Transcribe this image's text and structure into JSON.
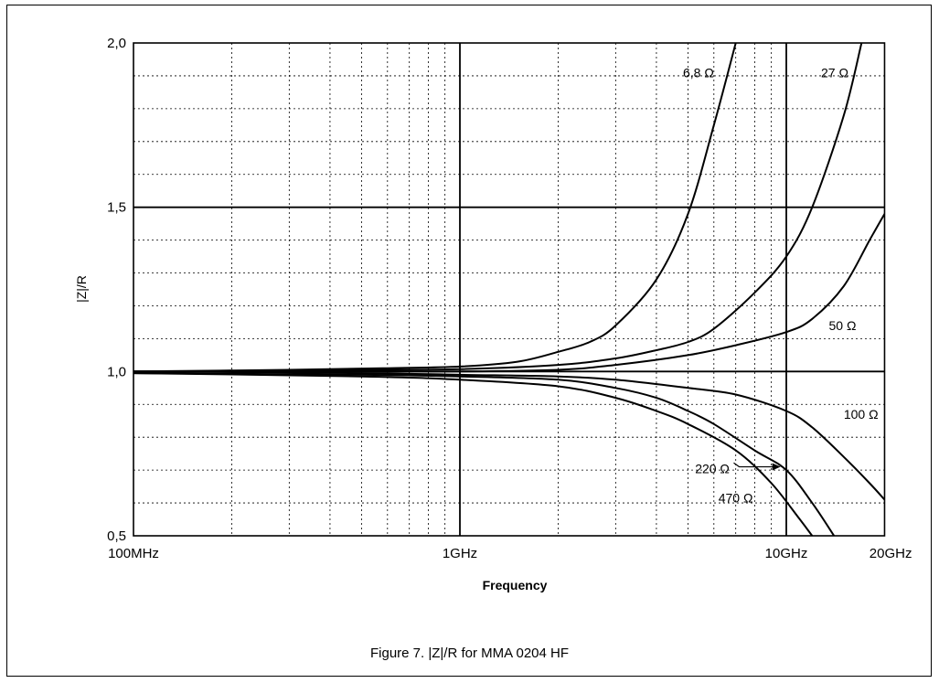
{
  "caption": "Figure 7. |Z|/R for MMA 0204 HF",
  "chart_data": {
    "type": "line",
    "title": "",
    "xlabel": "Frequency",
    "ylabel": "|Z|/R",
    "x_scale": "log",
    "x_unit": "GHz",
    "xlim": [
      0.1,
      20
    ],
    "ylim": [
      0.5,
      2.0
    ],
    "grid": true,
    "x_ticks": [
      {
        "value": 0.1,
        "label": "100MHz"
      },
      {
        "value": 1,
        "label": "1GHz"
      },
      {
        "value": 10,
        "label": "10GHz"
      },
      {
        "value": 20,
        "label": "20GHz"
      }
    ],
    "y_ticks": [
      {
        "value": 0.5,
        "label": "0,5"
      },
      {
        "value": 1.0,
        "label": "1,0"
      },
      {
        "value": 1.5,
        "label": "1,5"
      },
      {
        "value": 2.0,
        "label": "2,0"
      }
    ],
    "series": [
      {
        "name": "6,8 Ω",
        "x": [
          0.1,
          0.3,
          0.6,
          1,
          1.5,
          2,
          2.5,
          3,
          4,
          5,
          6,
          7
        ],
        "y": [
          1.0,
          1.005,
          1.01,
          1.015,
          1.03,
          1.06,
          1.09,
          1.14,
          1.28,
          1.48,
          1.75,
          2.0
        ]
      },
      {
        "name": "27 Ω",
        "x": [
          0.1,
          0.3,
          0.6,
          1,
          2,
          3,
          4,
          5,
          6,
          8,
          10,
          12,
          15,
          17
        ],
        "y": [
          1.0,
          1.002,
          1.005,
          1.007,
          1.02,
          1.04,
          1.065,
          1.09,
          1.13,
          1.24,
          1.35,
          1.5,
          1.78,
          2.0
        ]
      },
      {
        "name": "50 Ω",
        "x": [
          0.1,
          0.5,
          1,
          2,
          3,
          5,
          7,
          10,
          12,
          15,
          18,
          20
        ],
        "y": [
          1.0,
          1.0,
          1.0,
          1.005,
          1.02,
          1.05,
          1.08,
          1.12,
          1.16,
          1.26,
          1.4,
          1.48
        ]
      },
      {
        "name": "100 Ω",
        "x": [
          0.1,
          0.5,
          1,
          2,
          3,
          5,
          7,
          10,
          12,
          15,
          18,
          20
        ],
        "y": [
          1.0,
          0.995,
          0.99,
          0.985,
          0.975,
          0.95,
          0.93,
          0.88,
          0.83,
          0.74,
          0.66,
          0.61
        ]
      },
      {
        "name": "220 Ω",
        "x": [
          0.1,
          0.5,
          1,
          2,
          3,
          4,
          5,
          6,
          8,
          10,
          12,
          14
        ],
        "y": [
          0.995,
          0.99,
          0.985,
          0.975,
          0.95,
          0.92,
          0.88,
          0.84,
          0.76,
          0.7,
          0.6,
          0.5
        ]
      },
      {
        "name": "470 Ω",
        "x": [
          0.1,
          0.5,
          1,
          2,
          3,
          4,
          5,
          7,
          9,
          11,
          12
        ],
        "y": [
          0.995,
          0.985,
          0.975,
          0.955,
          0.92,
          0.88,
          0.84,
          0.76,
          0.66,
          0.55,
          0.5
        ]
      }
    ]
  }
}
